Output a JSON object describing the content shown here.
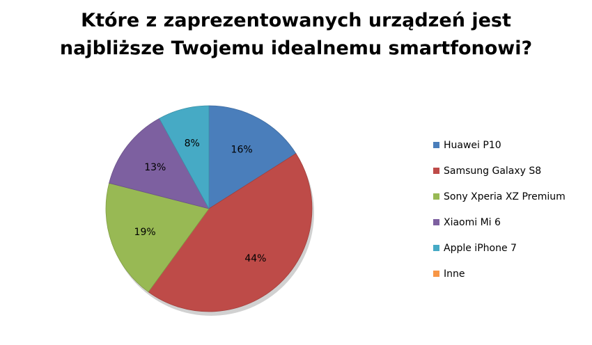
{
  "chart_data": {
    "type": "pie",
    "title_lines": [
      "Które z zaprezentowanych urządzeń jest",
      "najbliższe Twojemu idealnemu smartfonowi?"
    ],
    "categories": [
      "Huawei P10",
      "Samsung Galaxy S8",
      "Sony Xperia XZ Premium",
      "Xiaomi Mi 6",
      "Apple iPhone 7",
      "Inne"
    ],
    "values": [
      16,
      44,
      19,
      13,
      8,
      0
    ],
    "labels": [
      "16%",
      "44%",
      "19%",
      "13%",
      "8%",
      ""
    ],
    "colors": [
      "#4a7ebb",
      "#be4b48",
      "#98b954",
      "#7d60a0",
      "#46aac5",
      "#f79646"
    ],
    "legend_position": "right",
    "unit": "%"
  }
}
